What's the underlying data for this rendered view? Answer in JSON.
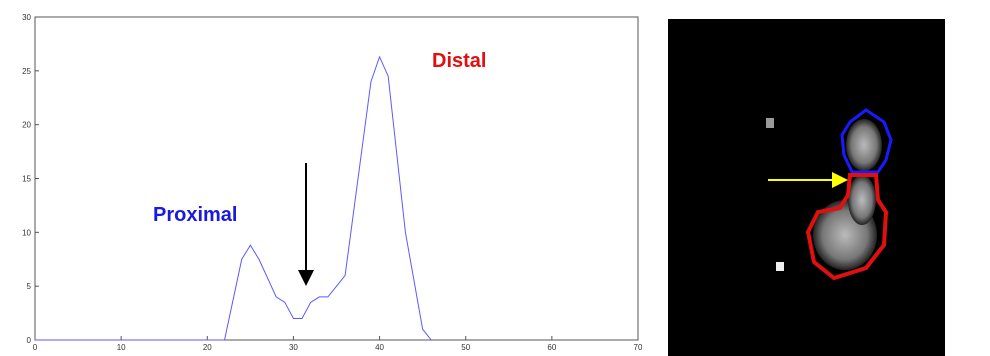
{
  "chart_data": {
    "type": "line",
    "x": [
      0,
      22,
      24,
      25,
      26,
      28,
      29,
      30,
      31,
      32,
      33,
      34,
      35,
      36,
      38,
      39,
      40,
      41,
      43,
      45,
      46
    ],
    "series": [
      {
        "color": "#5a5aff",
        "values": [
          0,
          0,
          7.5,
          8.8,
          7.5,
          4,
          3.5,
          2,
          2,
          3.5,
          4,
          4,
          5,
          6,
          18,
          24,
          26.3,
          24.5,
          10,
          1,
          0
        ]
      }
    ],
    "xlim": [
      0,
      70
    ],
    "ylim": [
      0,
      30
    ],
    "xticks": [
      0,
      10,
      20,
      30,
      40,
      50,
      60,
      70
    ],
    "yticks": [
      0,
      5,
      10,
      15,
      20,
      25,
      30
    ],
    "annotations": [
      {
        "text": "Proximal",
        "color": "#1a1adc"
      },
      {
        "text": "Distal",
        "color": "#e01010"
      }
    ]
  }
}
